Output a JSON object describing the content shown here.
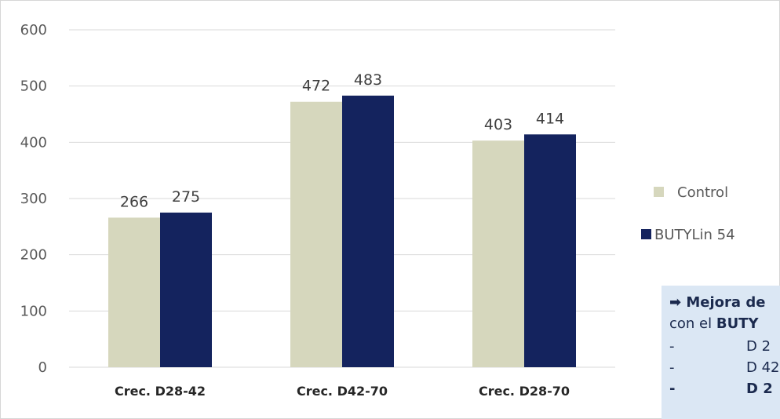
{
  "chart_data": {
    "type": "bar",
    "categories": [
      "Crec. D28-42",
      "Crec. D42-70",
      "Crec. D28-70"
    ],
    "series": [
      {
        "name": "Control",
        "values": [
          266,
          472,
          403
        ],
        "color": "#d6d7bd"
      },
      {
        "name": "BUTYLin 54",
        "values": [
          275,
          483,
          414
        ],
        "color": "#14235e"
      }
    ],
    "y_ticks": [
      "0",
      "100",
      "200",
      "300",
      "400",
      "500",
      "600"
    ],
    "ylim": [
      0,
      600
    ],
    "grid": true,
    "legend_position": "right",
    "data_labels": true
  },
  "note": {
    "arrow": "➡",
    "line1": "Mejora de",
    "line2_prefix": "con el ",
    "line2_bold": "BUTY",
    "items": [
      {
        "dash": "-",
        "text": "D 2",
        "bold": false
      },
      {
        "dash": "-",
        "text": "D 42",
        "bold": false
      },
      {
        "dash": "-",
        "text": "D 2",
        "bold": true
      }
    ]
  }
}
